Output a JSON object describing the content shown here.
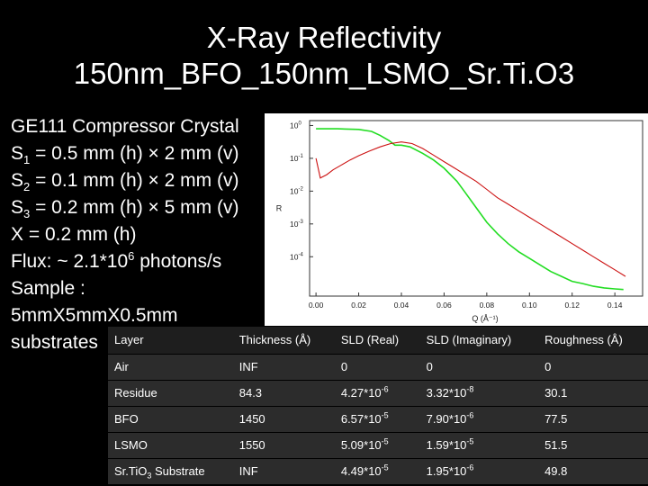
{
  "title": {
    "line1": "X-Ray Reflectivity",
    "line2": "150nm_BFO_150nm_LSMO_Sr.Ti.O3"
  },
  "params": [
    {
      "pre": "GE111 Compressor Crystal"
    },
    {
      "pre": "S",
      "sub": "1",
      "post": " = 0.5 mm (h) × 2 mm (v)"
    },
    {
      "pre": "S",
      "sub": "2",
      "post": " = 0.1 mm (h) × 2 mm (v)"
    },
    {
      "pre": "S",
      "sub": "3",
      "post": " = 0.2 mm (h) × 5 mm (v)"
    },
    {
      "pre": "X = 0.2 mm (h)"
    },
    {
      "pre": "Flux: ~ 2.1*10",
      "sup": "6",
      "post": " photons/s"
    },
    {
      "pre": " Sample :"
    },
    {
      "pre": "5mmX5mmX0.5mm"
    },
    {
      "pre": "substrates"
    }
  ],
  "chart_data": {
    "type": "line",
    "xlabel": "Q (Å⁻¹)",
    "ylabel": "R",
    "xlim": [
      -0.003,
      0.153
    ],
    "ylim_log10": [
      -5.2,
      0.15
    ],
    "log_y": true,
    "x_ticks": [
      "0.00",
      "0.02",
      "0.04",
      "0.06",
      "0.08",
      "0.10",
      "0.12",
      "0.14"
    ],
    "y_ticks": [
      {
        "base": "10",
        "exp": "0"
      },
      {
        "base": "10",
        "exp": "-1"
      },
      {
        "base": "10",
        "exp": "-2"
      },
      {
        "base": "10",
        "exp": "-3"
      },
      {
        "base": "10",
        "exp": "-4"
      }
    ],
    "series": [
      {
        "color": "#22dd22",
        "x": [
          0.0,
          0.01,
          0.02,
          0.026,
          0.03,
          0.034,
          0.037,
          0.04,
          0.044,
          0.05,
          0.055,
          0.06,
          0.066,
          0.07,
          0.075,
          0.08,
          0.085,
          0.09,
          0.095,
          0.1,
          0.105,
          0.11,
          0.115,
          0.12,
          0.125,
          0.13,
          0.135,
          0.14,
          0.144
        ],
        "log10_y": [
          -0.1,
          -0.1,
          -0.12,
          -0.18,
          -0.3,
          -0.45,
          -0.6,
          -0.6,
          -0.65,
          -0.85,
          -1.05,
          -1.3,
          -1.7,
          -2.05,
          -2.5,
          -2.95,
          -3.3,
          -3.6,
          -3.85,
          -4.05,
          -4.25,
          -4.45,
          -4.6,
          -4.75,
          -4.82,
          -4.9,
          -4.95,
          -4.98,
          -5.0
        ]
      },
      {
        "color": "#cc1111",
        "x": [
          0.0,
          0.002,
          0.005,
          0.008,
          0.012,
          0.016,
          0.02,
          0.025,
          0.03,
          0.035,
          0.04,
          0.045,
          0.05,
          0.055,
          0.06,
          0.065,
          0.07,
          0.075,
          0.08,
          0.085,
          0.09,
          0.095,
          0.1,
          0.105,
          0.11,
          0.115,
          0.12,
          0.125,
          0.13,
          0.135,
          0.14,
          0.145
        ],
        "log10_y": [
          -1.0,
          -1.6,
          -1.5,
          -1.35,
          -1.2,
          -1.05,
          -0.92,
          -0.78,
          -0.65,
          -0.55,
          -0.5,
          -0.55,
          -0.7,
          -0.9,
          -1.1,
          -1.3,
          -1.5,
          -1.7,
          -1.95,
          -2.2,
          -2.4,
          -2.6,
          -2.8,
          -3.0,
          -3.2,
          -3.4,
          -3.6,
          -3.8,
          -4.0,
          -4.2,
          -4.4,
          -4.6
        ]
      }
    ]
  },
  "table": {
    "headers": [
      "Layer",
      "Thickness (Å)",
      "SLD (Real)",
      "SLD (Imaginary)",
      "Roughness (Å)"
    ],
    "rows": [
      [
        {
          "t": "Air"
        },
        {
          "t": "INF"
        },
        {
          "t": "0"
        },
        {
          "t": "0"
        },
        {
          "t": "0"
        }
      ],
      [
        {
          "t": "Residue"
        },
        {
          "t": "84.3"
        },
        {
          "m": "4.27*10",
          "e": "-6"
        },
        {
          "m": "3.32*10",
          "e": "-8"
        },
        {
          "t": "30.1"
        }
      ],
      [
        {
          "t": "BFO"
        },
        {
          "t": "1450"
        },
        {
          "m": "6.57*10",
          "e": "-5"
        },
        {
          "m": "7.90*10",
          "e": "-6"
        },
        {
          "t": "77.5"
        }
      ],
      [
        {
          "t": "LSMO"
        },
        {
          "t": "1550"
        },
        {
          "m": "5.09*10",
          "e": "-5"
        },
        {
          "m": "1.59*10",
          "e": "-5"
        },
        {
          "t": "51.5"
        }
      ],
      [
        {
          "t": "Sr.TiO",
          "sub": "3",
          "post": " Substrate"
        },
        {
          "t": "INF"
        },
        {
          "m": "4.49*10",
          "e": "-5"
        },
        {
          "m": "1.95*10",
          "e": "-6"
        },
        {
          "t": "49.8"
        }
      ]
    ]
  }
}
